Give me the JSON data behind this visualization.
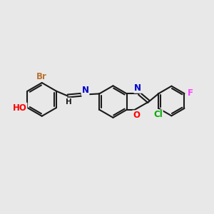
{
  "background_color": "#e8e8e8",
  "bond_color": "#1a1a1a",
  "lw": 1.5,
  "atom_colors": {
    "Br": "#b87333",
    "O": "#ff0000",
    "N": "#0000cd",
    "Cl": "#00aa00",
    "F": "#ff44ff",
    "H": "#1a1a1a",
    "C": "#1a1a1a"
  },
  "fs": 8.5,
  "fs_small": 7.5
}
